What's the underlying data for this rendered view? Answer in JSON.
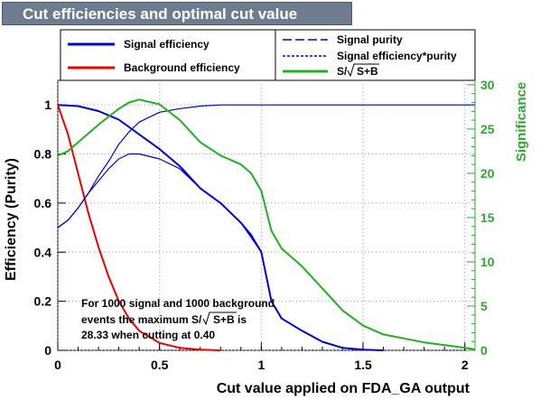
{
  "title": "Cut efficiencies and optimal cut value",
  "chart_data": {
    "type": "line",
    "xlabel": "Cut value applied on FDA_GA output",
    "ylabel_left": "Efficiency (Purity)",
    "ylabel_right": "Significance",
    "xlim": [
      0,
      2.05
    ],
    "ylim_left": [
      0,
      1.1
    ],
    "ylim_right": [
      0,
      30.5
    ],
    "x_ticks": [
      "0",
      "0.5",
      "1",
      "1.5",
      "2"
    ],
    "y_left_ticks": [
      "0",
      "0.2",
      "0.4",
      "0.6",
      "0.8",
      "1"
    ],
    "y_right_ticks": [
      "0",
      "5",
      "10",
      "15",
      "20",
      "25",
      "30"
    ],
    "grid": true,
    "legend": [
      {
        "label": "Signal efficiency",
        "color": "#0000d0",
        "style": "solid"
      },
      {
        "label": "Background efficiency",
        "color": "#ee0000",
        "style": "solid"
      },
      {
        "label": "Signal purity",
        "color": "#0000d0",
        "style": "dashed"
      },
      {
        "label": "Signal efficiency*purity",
        "color": "#0000d0",
        "style": "dotted"
      },
      {
        "label": "S/√S+B",
        "color": "#20b020",
        "style": "solid"
      }
    ],
    "series": [
      {
        "name": "Signal efficiency",
        "axis": "left",
        "color": "#0000d0",
        "width": 2,
        "x": [
          0,
          0.1,
          0.2,
          0.3,
          0.4,
          0.5,
          0.6,
          0.7,
          0.8,
          0.9,
          0.95,
          1.0,
          1.05,
          1.1,
          1.2,
          1.3,
          1.4,
          1.5,
          1.6
        ],
        "y": [
          1.0,
          0.995,
          0.975,
          0.94,
          0.88,
          0.82,
          0.75,
          0.66,
          0.6,
          0.52,
          0.47,
          0.4,
          0.2,
          0.13,
          0.08,
          0.035,
          0.01,
          0.003,
          0.0
        ]
      },
      {
        "name": "Background efficiency",
        "axis": "left",
        "color": "#ee0000",
        "width": 2,
        "x": [
          0,
          0.05,
          0.1,
          0.15,
          0.2,
          0.25,
          0.3,
          0.35,
          0.4,
          0.5,
          0.6,
          0.7,
          0.8
        ],
        "y": [
          1.0,
          0.88,
          0.72,
          0.56,
          0.42,
          0.3,
          0.2,
          0.13,
          0.08,
          0.03,
          0.01,
          0.003,
          0.0
        ]
      },
      {
        "name": "Signal purity",
        "axis": "left",
        "color": "#0000d0",
        "width": 1.2,
        "x": [
          0,
          0.05,
          0.1,
          0.15,
          0.2,
          0.25,
          0.3,
          0.35,
          0.4,
          0.5,
          0.6,
          0.7,
          0.8,
          1.0,
          1.5,
          2.05
        ],
        "y": [
          0.5,
          0.53,
          0.58,
          0.64,
          0.71,
          0.77,
          0.84,
          0.89,
          0.93,
          0.97,
          0.985,
          0.995,
          1.0,
          1.0,
          1.0,
          1.0
        ]
      },
      {
        "name": "Signal efficiency*purity",
        "axis": "left",
        "color": "#0000d0",
        "width": 1.2,
        "x": [
          0,
          0.05,
          0.1,
          0.15,
          0.2,
          0.25,
          0.3,
          0.35,
          0.4,
          0.5,
          0.6,
          0.7,
          0.8,
          0.9,
          1.0,
          1.05,
          1.1,
          1.2,
          1.3,
          1.4,
          1.5
        ],
        "y": [
          0.5,
          0.53,
          0.58,
          0.64,
          0.69,
          0.74,
          0.78,
          0.8,
          0.8,
          0.78,
          0.74,
          0.66,
          0.6,
          0.52,
          0.4,
          0.2,
          0.13,
          0.08,
          0.035,
          0.01,
          0.0
        ]
      },
      {
        "name": "S/√S+B",
        "axis": "right",
        "color": "#20b020",
        "width": 2,
        "x": [
          0,
          0.05,
          0.1,
          0.2,
          0.3,
          0.35,
          0.4,
          0.5,
          0.6,
          0.7,
          0.8,
          0.9,
          0.95,
          1.0,
          1.05,
          1.1,
          1.2,
          1.3,
          1.4,
          1.5,
          1.6,
          1.8,
          2.0,
          2.05
        ],
        "y": [
          22,
          22.5,
          23.5,
          25.5,
          27.3,
          28.0,
          28.33,
          27.8,
          26.0,
          23.5,
          22.0,
          21.0,
          20.0,
          18.0,
          13.5,
          11.5,
          9.5,
          7.0,
          4.5,
          2.8,
          1.8,
          0.9,
          0.3,
          0.1
        ]
      }
    ],
    "annotation": {
      "line1": "For 1000 signal and 1000 background",
      "line2_prefix": "events the maximum S/",
      "line2_root": "S+B",
      "line2_suffix": " is",
      "line3": "28.33 when cutting at  0.40"
    }
  }
}
